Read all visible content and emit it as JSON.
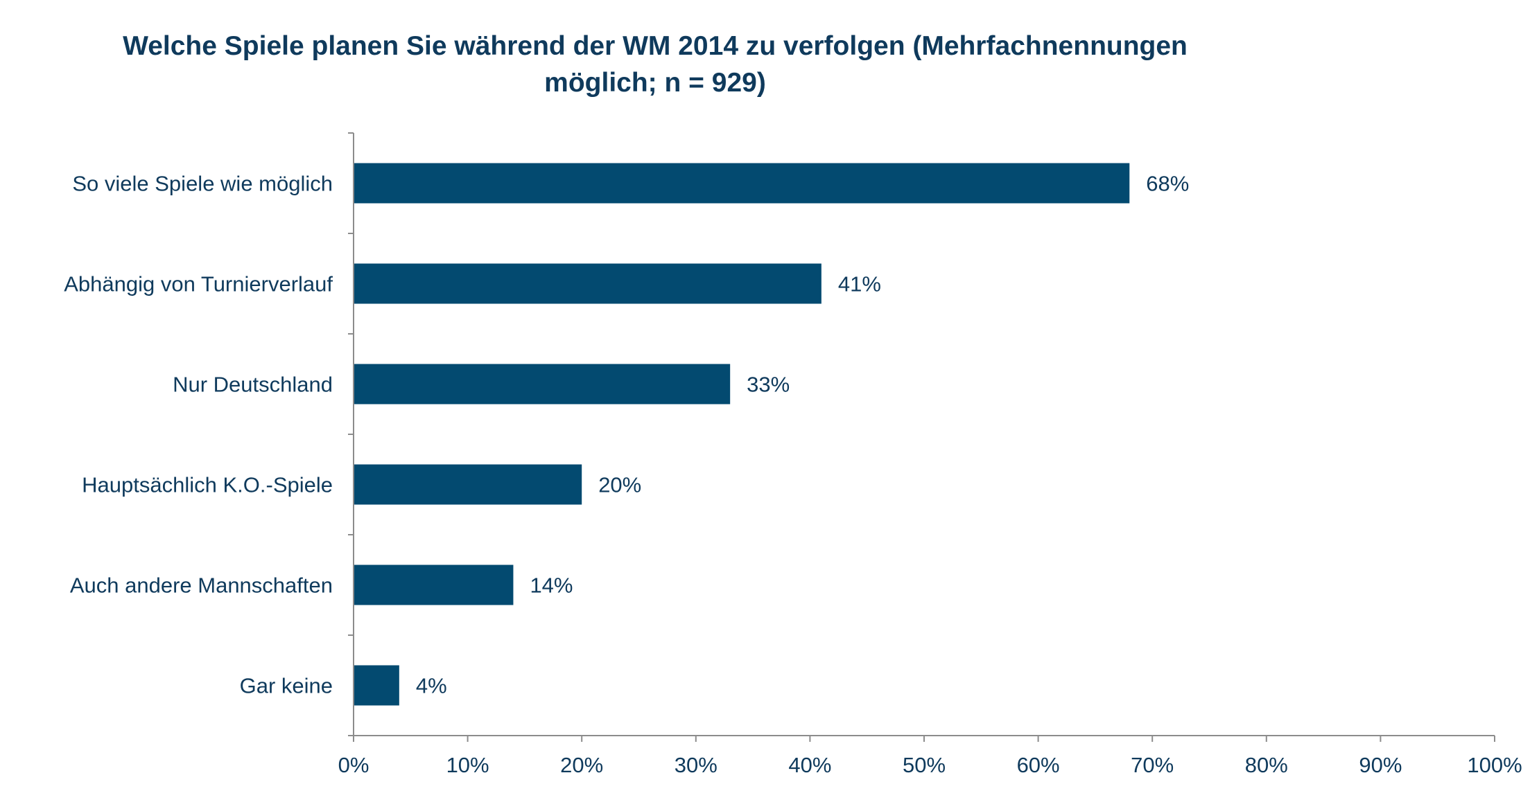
{
  "chart_data": {
    "type": "bar",
    "orientation": "horizontal",
    "title": "Welche Spiele planen Sie während der WM 2014 zu verfolgen (Mehrfachnennungen möglich; n = 929)",
    "categories": [
      "So viele Spiele wie möglich",
      "Abhängig von Turnierverlauf",
      "Nur Deutschland",
      "Hauptsächlich K.O.-Spiele",
      "Auch andere Mannschaften",
      "Gar keine"
    ],
    "values": [
      68,
      41,
      33,
      20,
      14,
      4
    ],
    "value_labels": [
      "68%",
      "41%",
      "33%",
      "20%",
      "14%",
      "4%"
    ],
    "xlim": [
      0,
      100
    ],
    "x_ticks": [
      "0%",
      "10%",
      "20%",
      "30%",
      "40%",
      "50%",
      "60%",
      "70%",
      "80%",
      "90%",
      "100%"
    ],
    "grid": false,
    "legend": "none",
    "bar_color": "#034a70",
    "text_color": "#0f3a5c"
  }
}
